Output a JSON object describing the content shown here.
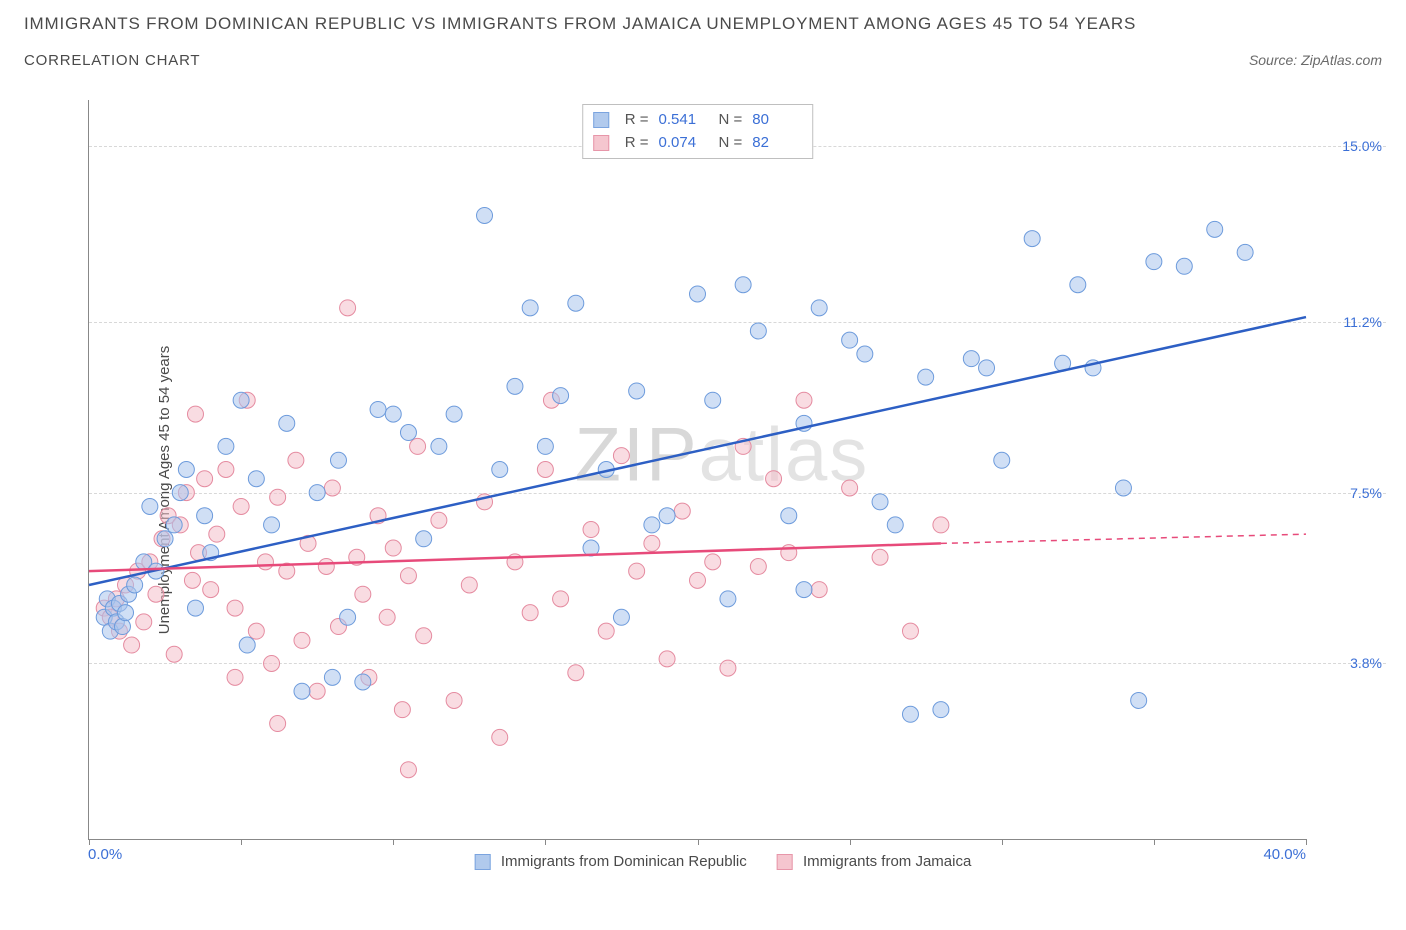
{
  "title": "IMMIGRANTS FROM DOMINICAN REPUBLIC VS IMMIGRANTS FROM JAMAICA UNEMPLOYMENT AMONG AGES 45 TO 54 YEARS",
  "subtitle": "CORRELATION CHART",
  "source": "Source: ZipAtlas.com",
  "ylabel": "Unemployment Among Ages 45 to 54 years",
  "watermark": "ZIPatlas",
  "chart": {
    "type": "scatter",
    "xlim": [
      0,
      40
    ],
    "ylim": [
      0,
      16
    ],
    "xticks_pct": [
      0,
      12.5,
      25,
      37.5,
      50,
      62.5,
      75,
      87.5,
      100
    ],
    "yticks": [
      {
        "value": 3.8,
        "label": "3.8%"
      },
      {
        "value": 7.5,
        "label": "7.5%"
      },
      {
        "value": 11.2,
        "label": "11.2%"
      },
      {
        "value": 15.0,
        "label": "15.0%"
      }
    ],
    "x_left_label": "0.0%",
    "x_right_label": "40.0%",
    "colors": {
      "series_a_fill": "#a9c5ec",
      "series_a_stroke": "#6d9bdc",
      "series_a_line": "#2d5fc4",
      "series_b_fill": "#f4c0ca",
      "series_b_stroke": "#e58ba0",
      "series_b_line": "#e74a7a",
      "grid": "#d8d8d8",
      "axis": "#888888",
      "tick_label": "#3b6fd6"
    },
    "marker_radius": 8,
    "line_width": 2.5,
    "series_a": {
      "label": "Immigrants from Dominican Republic",
      "R": "0.541",
      "N": "80",
      "trend": {
        "x1": 0,
        "y1": 5.5,
        "x2": 40,
        "y2": 11.3
      },
      "points": [
        [
          0.5,
          4.8
        ],
        [
          0.6,
          5.2
        ],
        [
          0.7,
          4.5
        ],
        [
          0.8,
          5.0
        ],
        [
          0.9,
          4.7
        ],
        [
          1.0,
          5.1
        ],
        [
          1.1,
          4.6
        ],
        [
          1.2,
          4.9
        ],
        [
          1.3,
          5.3
        ],
        [
          1.5,
          5.5
        ],
        [
          1.8,
          6.0
        ],
        [
          2.0,
          7.2
        ],
        [
          2.2,
          5.8
        ],
        [
          2.5,
          6.5
        ],
        [
          2.8,
          6.8
        ],
        [
          3.0,
          7.5
        ],
        [
          3.2,
          8.0
        ],
        [
          3.5,
          5.0
        ],
        [
          3.8,
          7.0
        ],
        [
          4.0,
          6.2
        ],
        [
          4.5,
          8.5
        ],
        [
          5.0,
          9.5
        ],
        [
          5.2,
          4.2
        ],
        [
          5.5,
          7.8
        ],
        [
          6.0,
          6.8
        ],
        [
          6.5,
          9.0
        ],
        [
          7.0,
          3.2
        ],
        [
          7.5,
          7.5
        ],
        [
          8.0,
          3.5
        ],
        [
          8.2,
          8.2
        ],
        [
          8.5,
          4.8
        ],
        [
          9.0,
          3.4
        ],
        [
          9.5,
          9.3
        ],
        [
          10.0,
          9.2
        ],
        [
          10.5,
          8.8
        ],
        [
          11.0,
          6.5
        ],
        [
          11.5,
          8.5
        ],
        [
          12.0,
          9.2
        ],
        [
          13.0,
          13.5
        ],
        [
          13.5,
          8.0
        ],
        [
          14.0,
          9.8
        ],
        [
          14.5,
          11.5
        ],
        [
          15.0,
          8.5
        ],
        [
          15.5,
          9.6
        ],
        [
          16.0,
          11.6
        ],
        [
          16.5,
          6.3
        ],
        [
          17.0,
          8.0
        ],
        [
          18.0,
          9.7
        ],
        [
          18.5,
          6.8
        ],
        [
          19.0,
          7.0
        ],
        [
          20.0,
          11.8
        ],
        [
          20.5,
          9.5
        ],
        [
          21.0,
          5.2
        ],
        [
          21.5,
          12.0
        ],
        [
          22.0,
          11.0
        ],
        [
          23.0,
          7.0
        ],
        [
          23.5,
          9.0
        ],
        [
          24.0,
          11.5
        ],
        [
          25.0,
          10.8
        ],
        [
          25.5,
          10.5
        ],
        [
          26.0,
          7.3
        ],
        [
          26.5,
          6.8
        ],
        [
          27.0,
          2.7
        ],
        [
          27.5,
          10.0
        ],
        [
          28.0,
          2.8
        ],
        [
          29.0,
          10.4
        ],
        [
          29.5,
          10.2
        ],
        [
          30.0,
          8.2
        ],
        [
          31.0,
          13.0
        ],
        [
          32.0,
          10.3
        ],
        [
          32.5,
          12.0
        ],
        [
          33.0,
          10.2
        ],
        [
          34.0,
          7.6
        ],
        [
          34.5,
          3.0
        ],
        [
          35.0,
          12.5
        ],
        [
          36.0,
          12.4
        ],
        [
          37.0,
          13.2
        ],
        [
          38.0,
          12.7
        ],
        [
          23.5,
          5.4
        ],
        [
          17.5,
          4.8
        ]
      ]
    },
    "series_b": {
      "label": "Immigrants from Jamaica",
      "R": "0.074",
      "N": "82",
      "trend": {
        "x1": 0,
        "y1": 5.8,
        "x2": 28,
        "y2": 6.4,
        "x2_dash": 40,
        "y2_dash": 6.6
      },
      "points": [
        [
          0.5,
          5.0
        ],
        [
          0.7,
          4.8
        ],
        [
          0.9,
          5.2
        ],
        [
          1.0,
          4.5
        ],
        [
          1.2,
          5.5
        ],
        [
          1.4,
          4.2
        ],
        [
          1.6,
          5.8
        ],
        [
          1.8,
          4.7
        ],
        [
          2.0,
          6.0
        ],
        [
          2.2,
          5.3
        ],
        [
          2.4,
          6.5
        ],
        [
          2.6,
          7.0
        ],
        [
          2.8,
          4.0
        ],
        [
          3.0,
          6.8
        ],
        [
          3.2,
          7.5
        ],
        [
          3.4,
          5.6
        ],
        [
          3.6,
          6.2
        ],
        [
          3.8,
          7.8
        ],
        [
          4.0,
          5.4
        ],
        [
          4.2,
          6.6
        ],
        [
          4.5,
          8.0
        ],
        [
          4.8,
          5.0
        ],
        [
          5.0,
          7.2
        ],
        [
          5.2,
          9.5
        ],
        [
          5.5,
          4.5
        ],
        [
          5.8,
          6.0
        ],
        [
          6.0,
          3.8
        ],
        [
          6.2,
          7.4
        ],
        [
          6.5,
          5.8
        ],
        [
          6.8,
          8.2
        ],
        [
          7.0,
          4.3
        ],
        [
          7.2,
          6.4
        ],
        [
          7.5,
          3.2
        ],
        [
          7.8,
          5.9
        ],
        [
          8.0,
          7.6
        ],
        [
          8.2,
          4.6
        ],
        [
          8.5,
          11.5
        ],
        [
          8.8,
          6.1
        ],
        [
          9.0,
          5.3
        ],
        [
          9.2,
          3.5
        ],
        [
          9.5,
          7.0
        ],
        [
          9.8,
          4.8
        ],
        [
          10.0,
          6.3
        ],
        [
          10.3,
          2.8
        ],
        [
          10.5,
          5.7
        ],
        [
          10.8,
          8.5
        ],
        [
          11.0,
          4.4
        ],
        [
          11.5,
          6.9
        ],
        [
          12.0,
          3.0
        ],
        [
          12.5,
          5.5
        ],
        [
          13.0,
          7.3
        ],
        [
          13.5,
          2.2
        ],
        [
          14.0,
          6.0
        ],
        [
          14.5,
          4.9
        ],
        [
          15.0,
          8.0
        ],
        [
          15.2,
          9.5
        ],
        [
          15.5,
          5.2
        ],
        [
          16.0,
          3.6
        ],
        [
          16.5,
          6.7
        ],
        [
          17.0,
          4.5
        ],
        [
          17.5,
          8.3
        ],
        [
          18.0,
          5.8
        ],
        [
          18.5,
          6.4
        ],
        [
          19.0,
          3.9
        ],
        [
          19.5,
          7.1
        ],
        [
          20.0,
          5.6
        ],
        [
          20.5,
          6.0
        ],
        [
          21.0,
          3.7
        ],
        [
          21.5,
          8.5
        ],
        [
          22.0,
          5.9
        ],
        [
          22.5,
          7.8
        ],
        [
          23.0,
          6.2
        ],
        [
          23.5,
          9.5
        ],
        [
          24.0,
          5.4
        ],
        [
          25.0,
          7.6
        ],
        [
          26.0,
          6.1
        ],
        [
          27.0,
          4.5
        ],
        [
          28.0,
          6.8
        ],
        [
          10.5,
          1.5
        ],
        [
          3.5,
          9.2
        ],
        [
          4.8,
          3.5
        ],
        [
          6.2,
          2.5
        ]
      ]
    }
  }
}
